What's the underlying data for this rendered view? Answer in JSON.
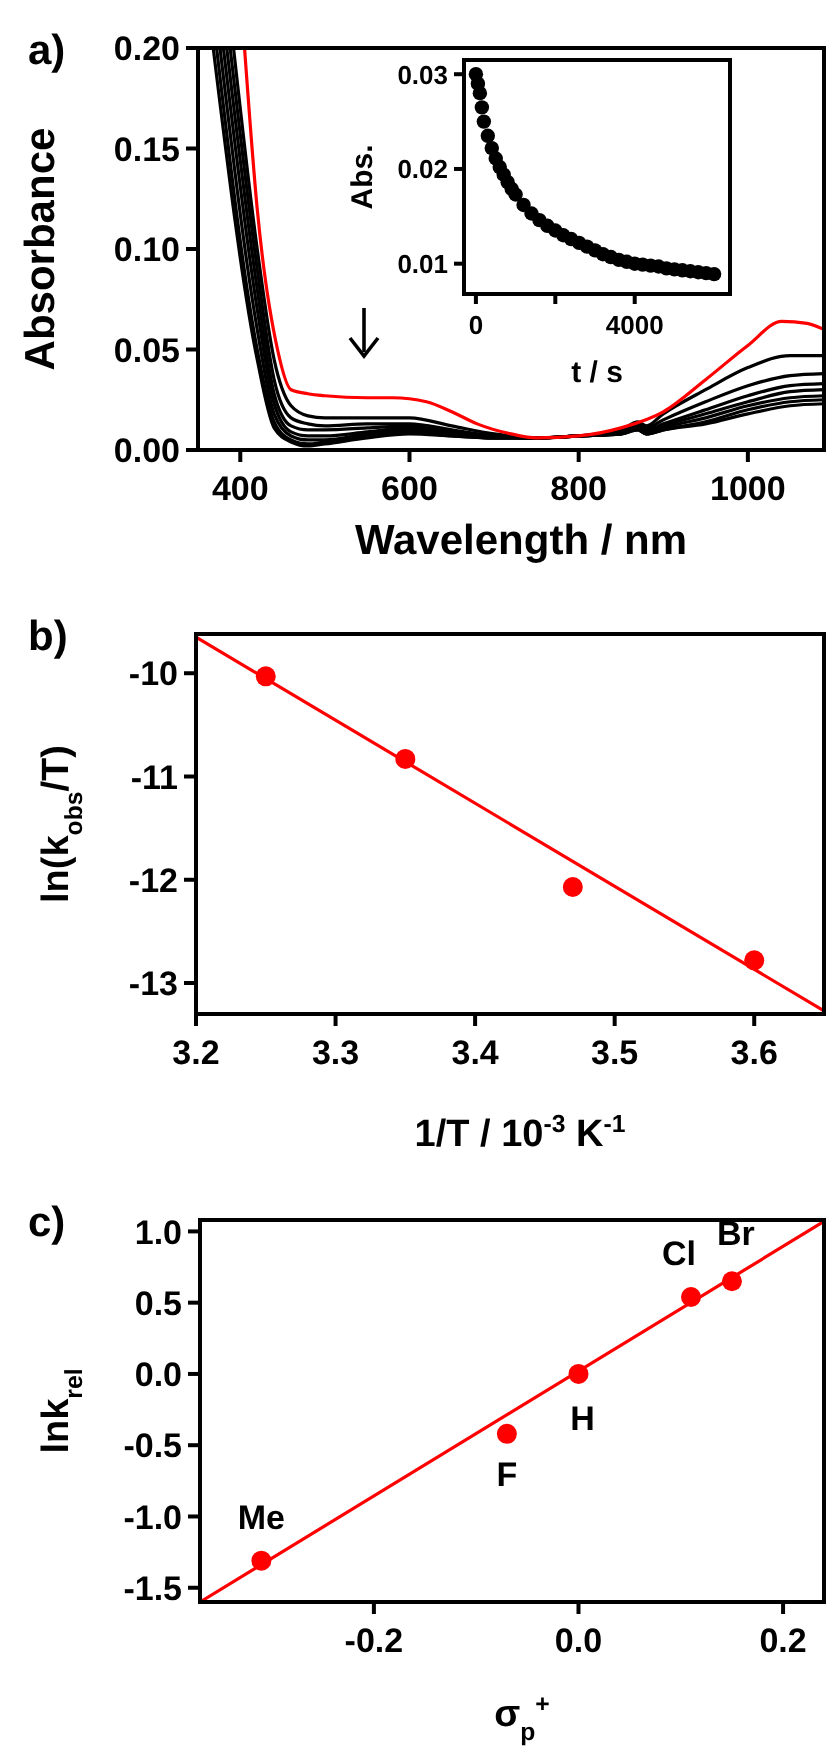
{
  "chart_data": [
    {
      "type": "line",
      "title": "a)",
      "xlabel": "Wavelength / nm",
      "ylabel": "Absorbance",
      "xlim": [
        350,
        1090
      ],
      "ylim": [
        0,
        0.2
      ],
      "xticks": [
        400,
        600,
        800,
        1000
      ],
      "yticks": [
        {
          "value": 0,
          "label": "0.00"
        },
        {
          "value": 0.05,
          "label": "0.05"
        },
        {
          "value": 0.1,
          "label": "0.10"
        },
        {
          "value": 0.15,
          "label": "0.15"
        },
        {
          "value": 0.2,
          "label": "0.20"
        }
      ],
      "line_style": "solid",
      "series": [
        {
          "color": "#000000",
          "x": [
            392,
            420,
            440,
            460,
            480,
            500,
            550,
            600,
            650,
            700,
            750,
            800,
            850,
            870,
            880,
            900,
            950,
            1000,
            1050,
            1090
          ],
          "values": [
            0.2,
            0.1,
            0.045,
            0.022,
            0.017,
            0.016,
            0.016,
            0.016,
            0.012,
            0.008,
            0.006,
            0.007,
            0.01,
            0.014,
            0.012,
            0.018,
            0.03,
            0.041,
            0.047,
            0.047
          ]
        },
        {
          "color": "#000000",
          "x": [
            388,
            420,
            440,
            460,
            480,
            500,
            550,
            600,
            650,
            700,
            750,
            800,
            850,
            870,
            880,
            900,
            950,
            1000,
            1050,
            1090
          ],
          "values": [
            0.2,
            0.09,
            0.035,
            0.016,
            0.013,
            0.012,
            0.013,
            0.013,
            0.01,
            0.007,
            0.006,
            0.007,
            0.009,
            0.013,
            0.011,
            0.015,
            0.024,
            0.032,
            0.037,
            0.038
          ]
        },
        {
          "color": "#000000",
          "x": [
            384,
            420,
            440,
            460,
            480,
            500,
            550,
            600,
            650,
            700,
            750,
            800,
            850,
            870,
            880,
            900,
            950,
            1000,
            1050,
            1090
          ],
          "values": [
            0.2,
            0.08,
            0.028,
            0.012,
            0.01,
            0.01,
            0.011,
            0.012,
            0.009,
            0.007,
            0.006,
            0.007,
            0.009,
            0.012,
            0.01,
            0.013,
            0.02,
            0.027,
            0.032,
            0.033
          ]
        },
        {
          "color": "#000000",
          "x": [
            380,
            420,
            440,
            460,
            480,
            500,
            550,
            600,
            650,
            700,
            750,
            800,
            850,
            870,
            880,
            900,
            950,
            1000,
            1050,
            1090
          ],
          "values": [
            0.2,
            0.07,
            0.023,
            0.009,
            0.007,
            0.007,
            0.009,
            0.011,
            0.008,
            0.006,
            0.006,
            0.007,
            0.008,
            0.011,
            0.009,
            0.012,
            0.018,
            0.024,
            0.029,
            0.03
          ]
        },
        {
          "color": "#000000",
          "x": [
            376,
            420,
            440,
            460,
            480,
            500,
            550,
            600,
            650,
            700,
            750,
            800,
            850,
            870,
            880,
            900,
            950,
            1000,
            1050,
            1090
          ],
          "values": [
            0.2,
            0.06,
            0.018,
            0.007,
            0.005,
            0.005,
            0.008,
            0.01,
            0.008,
            0.006,
            0.006,
            0.007,
            0.008,
            0.011,
            0.008,
            0.011,
            0.016,
            0.022,
            0.026,
            0.027
          ]
        },
        {
          "color": "#000000",
          "x": [
            372,
            420,
            440,
            460,
            480,
            500,
            550,
            600,
            650,
            700,
            750,
            800,
            850,
            870,
            880,
            900,
            950,
            1000,
            1050,
            1090
          ],
          "values": [
            0.2,
            0.05,
            0.014,
            0.005,
            0.003,
            0.004,
            0.007,
            0.009,
            0.007,
            0.006,
            0.006,
            0.007,
            0.008,
            0.01,
            0.008,
            0.01,
            0.014,
            0.02,
            0.024,
            0.025
          ]
        },
        {
          "color": "#000000",
          "x": [
            368,
            420,
            440,
            460,
            480,
            500,
            550,
            600,
            650,
            700,
            750,
            800,
            850,
            870,
            880,
            900,
            950,
            1000,
            1050,
            1090
          ],
          "values": [
            0.2,
            0.045,
            0.011,
            0.004,
            0.002,
            0.003,
            0.006,
            0.008,
            0.007,
            0.006,
            0.006,
            0.007,
            0.008,
            0.01,
            0.008,
            0.01,
            0.013,
            0.018,
            0.022,
            0.023
          ]
        },
        {
          "color": "#ff0000",
          "x": [
            405,
            420,
            444,
            460,
            480,
            500,
            550,
            580,
            620,
            650,
            680,
            720,
            750,
            800,
            850,
            900,
            950,
            1000,
            1040,
            1070,
            1090
          ],
          "values": [
            0.2,
            0.12,
            0.05,
            0.03,
            0.028,
            0.027,
            0.026,
            0.026,
            0.024,
            0.019,
            0.013,
            0.008,
            0.006,
            0.007,
            0.011,
            0.019,
            0.035,
            0.052,
            0.064,
            0.063,
            0.06
          ]
        }
      ]
    },
    {
      "type": "scatter",
      "xlabel": "t / s",
      "ylabel": "Abs.",
      "xlim": [
        -300,
        6400
      ],
      "ylim": [
        0.0068,
        0.0315
      ],
      "xticks": [
        0,
        {
          "value": 2000,
          "label": null
        },
        4000
      ],
      "yticks": [
        {
          "value": 0.01,
          "label": "0.01"
        },
        {
          "value": 0.02,
          "label": "0.02"
        },
        {
          "value": 0.03,
          "label": "0.03"
        }
      ],
      "marker": "circle",
      "series": [
        {
          "color": "#000000",
          "x": [
            0,
            50,
            100,
            150,
            200,
            300,
            400,
            500,
            600,
            700,
            800,
            900,
            1000,
            1200,
            1400,
            1600,
            1800,
            2000,
            2200,
            2400,
            2600,
            2800,
            3000,
            3200,
            3400,
            3600,
            3800,
            4000,
            4200,
            4400,
            4600,
            4800,
            5000,
            5200,
            5400,
            5600,
            5800,
            6000
          ],
          "values": [
            0.03,
            0.029,
            0.028,
            0.0265,
            0.025,
            0.0235,
            0.0222,
            0.0211,
            0.0202,
            0.0194,
            0.0186,
            0.0179,
            0.0173,
            0.0162,
            0.0153,
            0.0146,
            0.014,
            0.0135,
            0.013,
            0.0126,
            0.0122,
            0.0118,
            0.0114,
            0.011,
            0.0107,
            0.0104,
            0.0102,
            0.01,
            0.0099,
            0.0098,
            0.0097,
            0.0095,
            0.0094,
            0.0093,
            0.0092,
            0.0091,
            0.009,
            0.0089
          ]
        }
      ]
    },
    {
      "type": "scatter",
      "title": "b)",
      "xlabel": "1/T / 10$^{-3}$ K$^{-1}$",
      "ylabel": "ln(k$_{obs}$/T)",
      "xlim": [
        3.2,
        3.65
      ],
      "ylim": [
        -13.3,
        -9.62
      ],
      "xticks": [
        3.2,
        3.3,
        3.4,
        3.5,
        3.6
      ],
      "yticks": [
        -13,
        -12,
        -11,
        -10
      ],
      "series": [
        {
          "color": "#ff0000",
          "marker": "circle",
          "x": [
            3.25,
            3.35,
            3.47,
            3.6
          ],
          "values": [
            -10.03,
            -10.83,
            -12.07,
            -12.78
          ]
        },
        {
          "type": "line",
          "color": "#ff0000",
          "x": [
            3.2,
            3.65
          ],
          "values": [
            -9.65,
            -13.27
          ]
        }
      ]
    },
    {
      "type": "scatter",
      "title": "c)",
      "xlabel": "σ$_{p}$$^{+}$",
      "ylabel": "lnk$_{rel}$",
      "xlim": [
        -0.37,
        0.24
      ],
      "ylim": [
        -1.6,
        1.08
      ],
      "xticks": [
        -0.2,
        {
          "value": 0,
          "label": "0.0"
        },
        0.2
      ],
      "yticks": [
        -1.5,
        {
          "value": -1,
          "label": "-1.0"
        },
        -0.5,
        {
          "value": 0,
          "label": "0.0"
        },
        0.5,
        {
          "value": 1,
          "label": "1.0"
        }
      ],
      "series": [
        {
          "color": "#ff0000",
          "marker": "circle",
          "x": [
            -0.31,
            -0.07,
            0,
            0.11,
            0.15
          ],
          "values": [
            -1.31,
            -0.42,
            0,
            0.54,
            0.65
          ]
        },
        {
          "type": "line",
          "color": "#ff0000",
          "x": [
            -0.37,
            0.24
          ],
          "values": [
            -1.6,
            1.07
          ]
        }
      ],
      "annotations": [
        {
          "text": "Me",
          "x": -0.31,
          "y": -1.31
        },
        {
          "text": "F",
          "x": -0.07,
          "y": -0.42
        },
        {
          "text": "H",
          "x": 0,
          "y": 0
        },
        {
          "text": "Cl",
          "x": 0.11,
          "y": 0.54
        },
        {
          "text": "Br",
          "x": 0.15,
          "y": 0.65
        }
      ]
    }
  ]
}
